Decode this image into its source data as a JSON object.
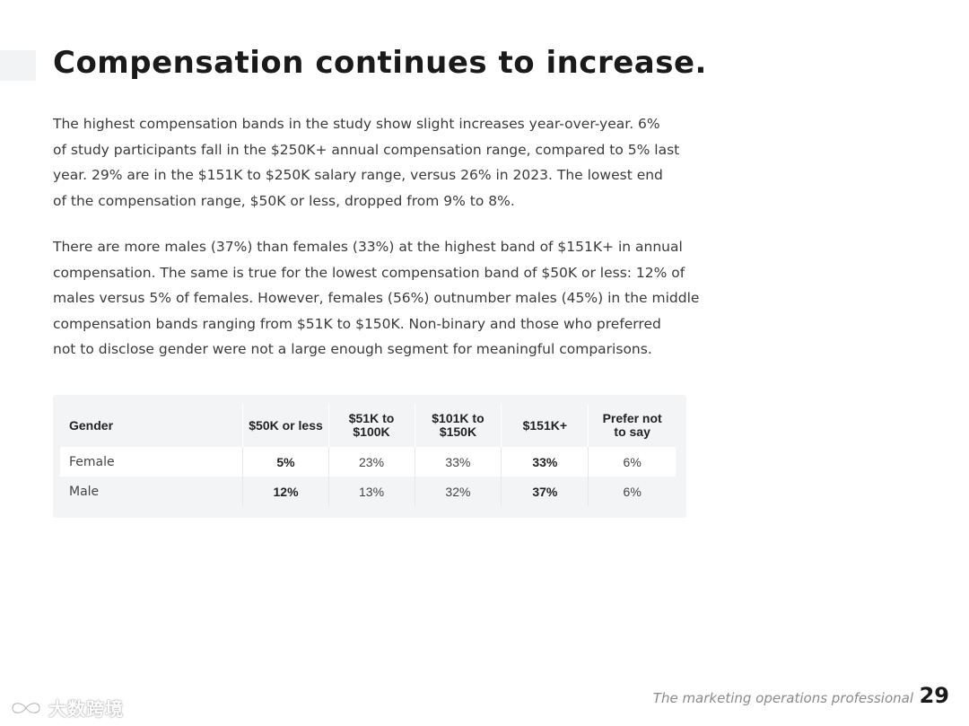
{
  "title": "Compensation continues to increase.",
  "paragraph1": [
    "The highest compensation bands in the study show slight increases year-over-year. 6%",
    "of study participants fall in the $250K+ annual compensation range, compared to 5% last",
    "year. 29% are in the $151K to $250K salary range, versus 26% in 2023. The lowest end",
    "of the compensation range, $50K or less, dropped from 9% to 8%."
  ],
  "paragraph2": [
    "There are more males (37%) than females (33%) at the highest band of $151K+ in annual",
    "compensation. The same is true for the lowest compensation band of $50K or less: 12% of",
    "males versus 5% of females. However, females (56%) outnumber males (45%) in the middle",
    "compensation bands ranging from $51K to $150K. Non-binary and those who preferred",
    "not to disclose gender were not a large enough segment for meaningful comparisons."
  ],
  "table": {
    "headers": {
      "gender": "Gender",
      "c1": "$50K or less",
      "c2_line1": "$51K to",
      "c2_line2": "$100K",
      "c3_line1": "$101K to",
      "c3_line2": "$150K",
      "c4": "$151K+",
      "c5_line1": "Prefer not",
      "c5_line2": "to say"
    },
    "rows": [
      {
        "label": "Female",
        "c1": "5%",
        "c2": "23%",
        "c3": "33%",
        "c4": "33%",
        "c5": "6%"
      },
      {
        "label": "Male",
        "c1": "12%",
        "c2": "13%",
        "c3": "32%",
        "c4": "37%",
        "c5": "6%"
      }
    ]
  },
  "footer": {
    "publication": "The marketing operations professional",
    "page_number": "29"
  },
  "watermark": {
    "text": "大数跨境",
    "icon": "infinity-logo-icon"
  },
  "colors": {
    "title": "#1a1a1a",
    "body_text": "#3a3a3a",
    "table_background": "#f3f4f6",
    "footer_text": "#8a8a8a"
  }
}
